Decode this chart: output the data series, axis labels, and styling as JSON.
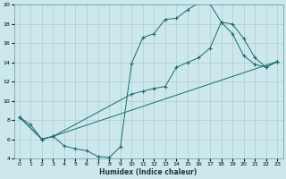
{
  "xlabel": "Humidex (Indice chaleur)",
  "bg_color": "#cce8ec",
  "grid_color": "#aacdd4",
  "line_color": "#1a6b6b",
  "xlim": [
    -0.5,
    23.5
  ],
  "ylim": [
    4,
    20
  ],
  "xticks": [
    0,
    1,
    2,
    3,
    4,
    5,
    6,
    7,
    8,
    9,
    10,
    11,
    12,
    13,
    14,
    15,
    16,
    17,
    18,
    19,
    20,
    21,
    22,
    23
  ],
  "yticks": [
    4,
    6,
    8,
    10,
    12,
    14,
    16,
    18,
    20
  ],
  "curve1_x": [
    0,
    1,
    2,
    3,
    4,
    5,
    6,
    7,
    8,
    9,
    10,
    11,
    12,
    13,
    14,
    15,
    16,
    17,
    18,
    19,
    20,
    21,
    22,
    23
  ],
  "curve1_y": [
    8.3,
    7.5,
    6.0,
    6.3,
    5.3,
    5.0,
    4.8,
    4.2,
    4.1,
    5.2,
    13.9,
    16.6,
    17.0,
    18.5,
    18.6,
    19.5,
    20.2,
    20.1,
    18.2,
    17.0,
    14.7,
    13.8,
    13.5,
    14.1
  ],
  "curve2_x": [
    0,
    2,
    3,
    10,
    11,
    12,
    13,
    14,
    15,
    16,
    17,
    18,
    19,
    20,
    21,
    22,
    23
  ],
  "curve2_y": [
    8.3,
    6.0,
    6.3,
    10.7,
    11.0,
    11.3,
    11.5,
    13.5,
    14.0,
    14.5,
    15.5,
    18.2,
    18.0,
    16.5,
    14.5,
    13.5,
    14.1
  ],
  "curve3_x": [
    0,
    2,
    3,
    23
  ],
  "curve3_y": [
    8.3,
    6.0,
    6.3,
    14.1
  ]
}
